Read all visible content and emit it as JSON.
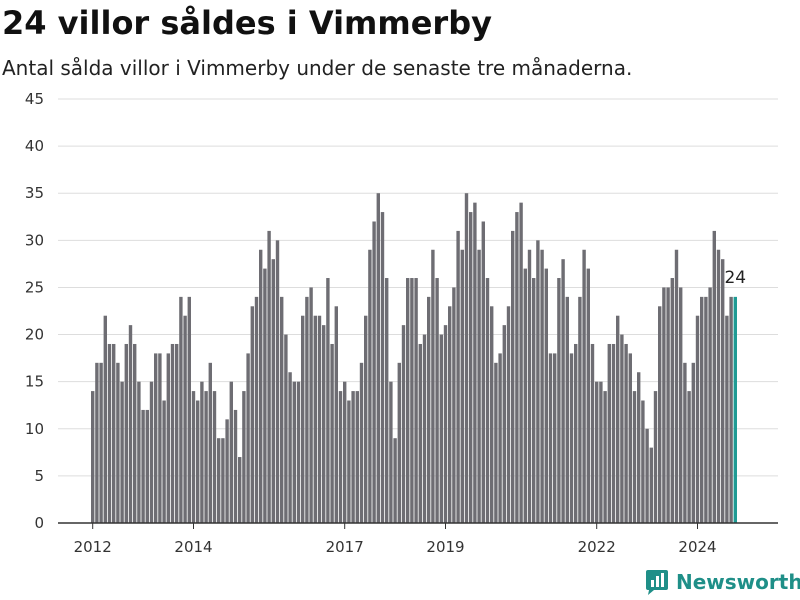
{
  "title": "24 villor såldes i Vimmerby",
  "subtitle": "Antal sålda villor i Vimmerby under de senaste tre månaderna.",
  "brand": {
    "name": "Newsworthy",
    "icon": "newsworthy-logo-icon",
    "color": "#1f8f88"
  },
  "chart_data": {
    "type": "bar",
    "ylim": [
      0,
      45
    ],
    "yticks": [
      "0",
      "5",
      "10",
      "15",
      "20",
      "25",
      "30",
      "35",
      "40",
      "45"
    ],
    "xticks": [
      {
        "label": "2012",
        "index": 0
      },
      {
        "label": "2014",
        "index": 24
      },
      {
        "label": "2017",
        "index": 60
      },
      {
        "label": "2019",
        "index": 84
      },
      {
        "label": "2022",
        "index": 120
      },
      {
        "label": "2024",
        "index": 144
      }
    ],
    "grid": true,
    "colors": {
      "bar": "#6e6d73",
      "highlight": "#1f9b94",
      "grid": "#dddddd",
      "axis": "#333333"
    },
    "values": [
      14,
      17,
      17,
      22,
      19,
      19,
      17,
      15,
      19,
      21,
      19,
      15,
      12,
      12,
      15,
      18,
      18,
      13,
      18,
      19,
      19,
      24,
      22,
      24,
      14,
      13,
      15,
      14,
      17,
      14,
      9,
      9,
      11,
      15,
      12,
      7,
      14,
      18,
      23,
      24,
      29,
      27,
      31,
      28,
      30,
      24,
      20,
      16,
      15,
      15,
      22,
      24,
      25,
      22,
      22,
      21,
      26,
      19,
      23,
      14,
      15,
      13,
      14,
      14,
      17,
      22,
      29,
      32,
      35,
      33,
      26,
      15,
      9,
      17,
      21,
      26,
      26,
      26,
      19,
      20,
      24,
      29,
      26,
      20,
      21,
      23,
      25,
      31,
      29,
      35,
      33,
      34,
      29,
      32,
      26,
      23,
      17,
      18,
      21,
      23,
      31,
      33,
      34,
      27,
      29,
      26,
      30,
      29,
      27,
      18,
      18,
      26,
      28,
      24,
      18,
      19,
      24,
      29,
      27,
      19,
      15,
      15,
      14,
      19,
      19,
      22,
      20,
      19,
      18,
      14,
      16,
      13,
      10,
      8,
      14,
      23,
      25,
      25,
      26,
      29,
      25,
      17,
      14,
      17,
      22,
      24,
      24,
      25,
      31,
      29,
      28,
      22,
      24,
      24
    ],
    "highlight_index": 153,
    "data_label": {
      "text": "24",
      "index": 153
    }
  }
}
